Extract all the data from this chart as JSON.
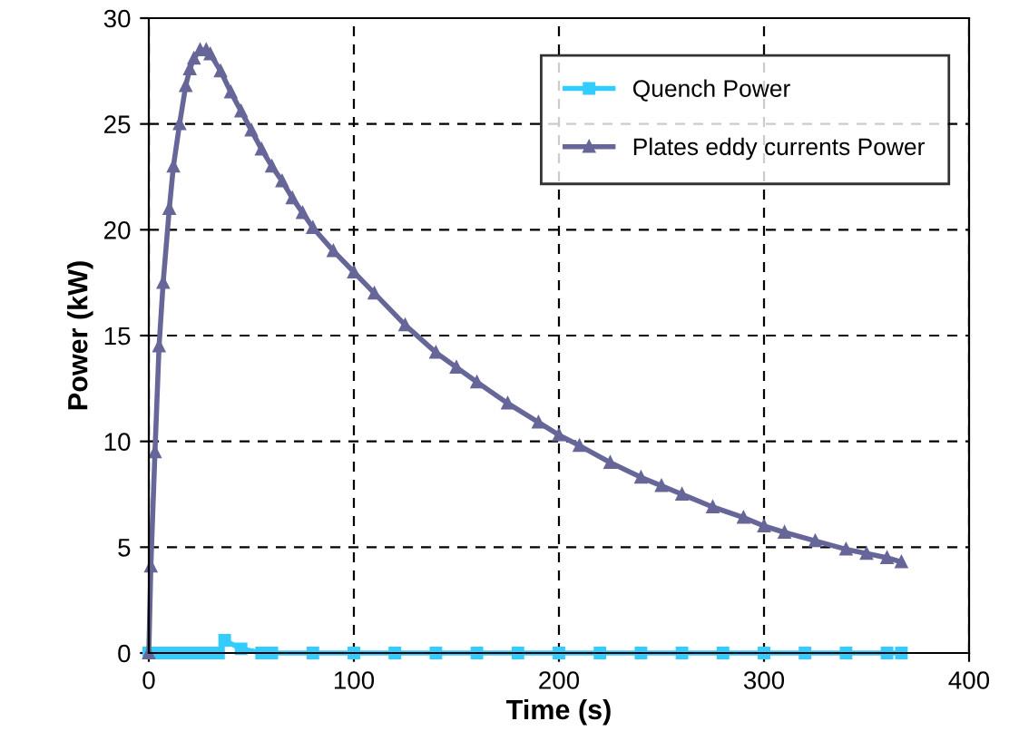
{
  "chart_data": {
    "type": "line",
    "xlabel": "Time (s)",
    "ylabel": "Power (kW)",
    "xlim": [
      0,
      400
    ],
    "ylim": [
      0,
      30
    ],
    "xticks": [
      0,
      100,
      200,
      300,
      400
    ],
    "yticks": [
      0,
      5,
      10,
      15,
      20,
      25,
      30
    ],
    "grid": true,
    "legend": "top right",
    "series": [
      {
        "name": "Quench Power",
        "color": "#33ccff",
        "marker": "square",
        "x": [
          0,
          5,
          10,
          15,
          20,
          25,
          30,
          34,
          37,
          45,
          55,
          60,
          80,
          100,
          120,
          140,
          160,
          180,
          200,
          220,
          240,
          260,
          280,
          300,
          320,
          340,
          360,
          367
        ],
        "values": [
          0,
          0,
          0,
          0,
          0,
          0,
          0,
          0,
          0.6,
          0.2,
          0,
          0,
          0,
          0,
          0,
          0,
          0,
          0,
          0,
          0,
          0,
          0,
          0,
          0,
          0,
          0,
          0,
          0
        ]
      },
      {
        "name": "Plates eddy currents Power",
        "color": "#666699",
        "marker": "triangle",
        "x": [
          0,
          1,
          3,
          5,
          7,
          10,
          12,
          15,
          18,
          20,
          22,
          25,
          28,
          30,
          35,
          40,
          45,
          50,
          55,
          60,
          65,
          70,
          75,
          80,
          90,
          100,
          110,
          125,
          140,
          150,
          160,
          175,
          190,
          200,
          210,
          225,
          240,
          250,
          260,
          275,
          290,
          300,
          310,
          325,
          340,
          350,
          360,
          367
        ],
        "values": [
          0,
          4.1,
          9.5,
          14.5,
          17.5,
          21,
          23,
          25,
          26.8,
          27.6,
          28.1,
          28.5,
          28.5,
          28.3,
          27.5,
          26.5,
          25.6,
          24.7,
          23.8,
          23,
          22.3,
          21.5,
          20.8,
          20.1,
          19,
          18,
          17,
          15.5,
          14.2,
          13.5,
          12.8,
          11.8,
          10.9,
          10.3,
          9.8,
          9,
          8.3,
          7.9,
          7.5,
          6.9,
          6.4,
          6,
          5.7,
          5.3,
          4.9,
          4.7,
          4.5,
          4.3
        ]
      }
    ]
  }
}
